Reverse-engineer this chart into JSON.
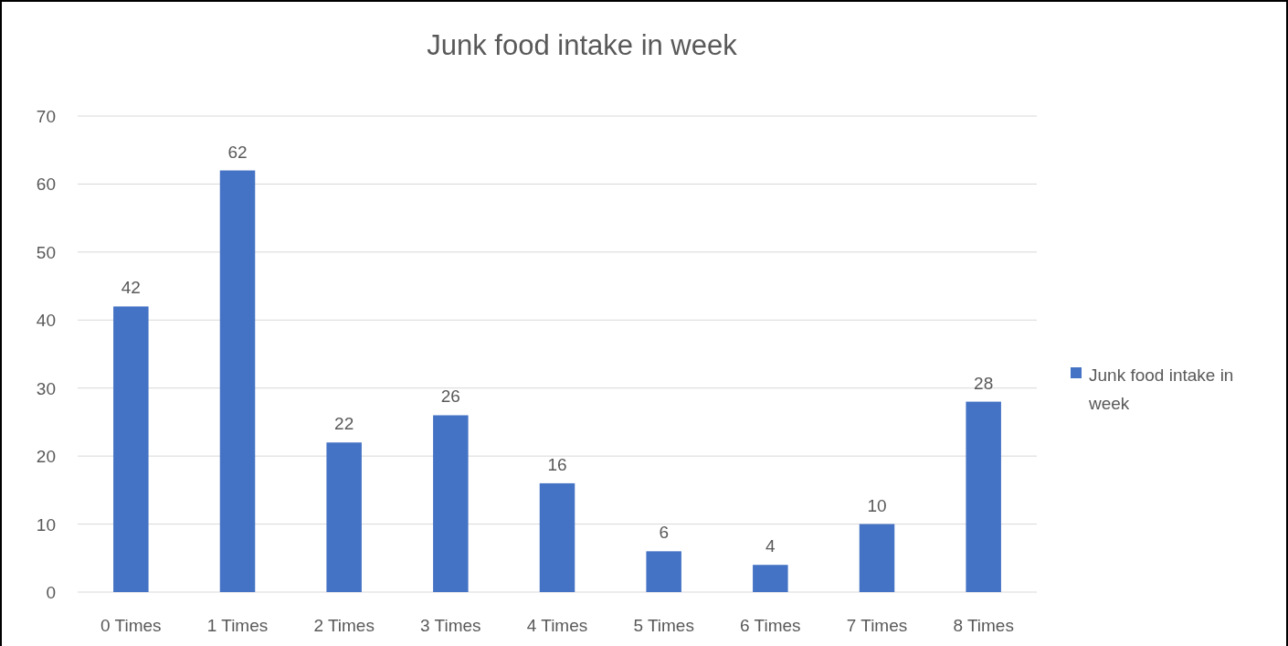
{
  "chart_data": {
    "type": "bar",
    "title": "Junk food intake in week",
    "categories": [
      "0 Times",
      "1 Times",
      "2 Times",
      "3 Times",
      "4 Times",
      "5 Times",
      "6 Times",
      "7 Times",
      "8 Times"
    ],
    "series": [
      {
        "name": "Junk food intake in week",
        "color": "#4472c4",
        "values": [
          42,
          62,
          22,
          26,
          16,
          6,
          4,
          10,
          28
        ]
      }
    ],
    "ylim": [
      0,
      70
    ],
    "yticks": [
      0,
      10,
      20,
      30,
      40,
      50,
      60,
      70
    ],
    "grid": "y",
    "legend": "right",
    "data_labels": true
  }
}
